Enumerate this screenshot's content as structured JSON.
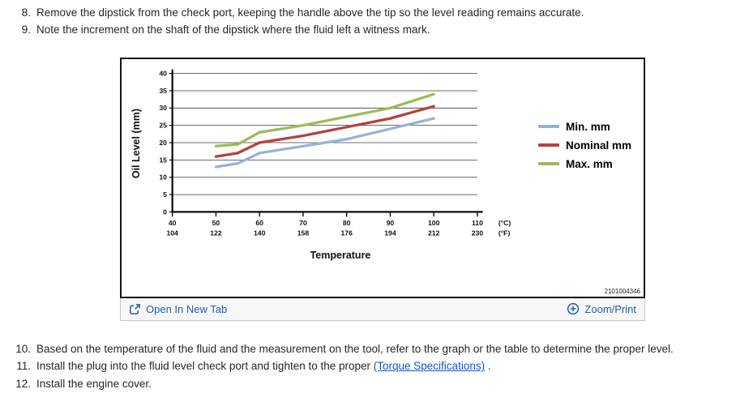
{
  "instructions_top": {
    "items": [
      {
        "num": "8.",
        "parts": [
          {
            "text": "Remove the dipstick from the check port, keeping the handle above the tip so the level reading remains accurate."
          }
        ]
      },
      {
        "num": "9.",
        "parts": [
          {
            "text": "Note the increment on the shaft of the dipstick where the fluid left a witness mark."
          }
        ]
      }
    ]
  },
  "instructions_bottom": {
    "items": [
      {
        "num": "10.",
        "parts": [
          {
            "text": "Based on the temperature of the fluid and the measurement on the tool, refer to the graph or the table to determine the proper level."
          }
        ]
      },
      {
        "num": "11.",
        "parts": [
          {
            "text": "Install the plug into the fluid level check port and tighten to the proper "
          },
          {
            "text": "(Torque Specifications)",
            "link": true
          },
          {
            "text": " ."
          }
        ]
      },
      {
        "num": "12.",
        "parts": [
          {
            "text": "Install the engine cover."
          }
        ]
      }
    ]
  },
  "figure": {
    "figure_id": "2101004346",
    "open_in_new_tab_label": "Open In New Tab",
    "zoom_print_label": "Zoom/Print"
  },
  "icons": {
    "open_in_new_tab": "open-in-new-tab-icon",
    "zoom_print": "circle-plus-icon"
  },
  "colors": {
    "doc_link_blue": "#1155cc",
    "toolbar_link_blue": "#1d5fae",
    "series_min_blue": "#95b3d7",
    "series_nominal_red": "#b4413c",
    "series_max_green": "#9bbb59"
  },
  "chart_data": {
    "type": "line",
    "title": "",
    "xlabel": "Temperature",
    "ylabel": "Oil Level (mm)",
    "ylim": [
      0,
      40
    ],
    "yticks": [
      0,
      5,
      10,
      15,
      20,
      25,
      30,
      35,
      40
    ],
    "x_range": [
      40,
      110
    ],
    "x_ticks_c": [
      40,
      50,
      60,
      70,
      80,
      90,
      100,
      110
    ],
    "x_ticks_f": [
      104,
      122,
      140,
      158,
      176,
      194,
      212,
      230
    ],
    "x_unit_c": "(°C)",
    "x_unit_f": "(°F)",
    "grid": "horizontal",
    "legend_position": "right",
    "x": [
      50,
      55,
      60,
      70,
      80,
      90,
      100
    ],
    "series": [
      {
        "name": "Min. mm",
        "color": "#95b3d7",
        "values": [
          13,
          14,
          17,
          19,
          21,
          24,
          27
        ]
      },
      {
        "name": "Nominal mm",
        "color": "#b4413c",
        "values": [
          16,
          17,
          20,
          22,
          24.5,
          27,
          30.5
        ]
      },
      {
        "name": "Max. mm",
        "color": "#9bbb59",
        "values": [
          19,
          19.5,
          23,
          25,
          27.5,
          30,
          34
        ]
      }
    ]
  }
}
